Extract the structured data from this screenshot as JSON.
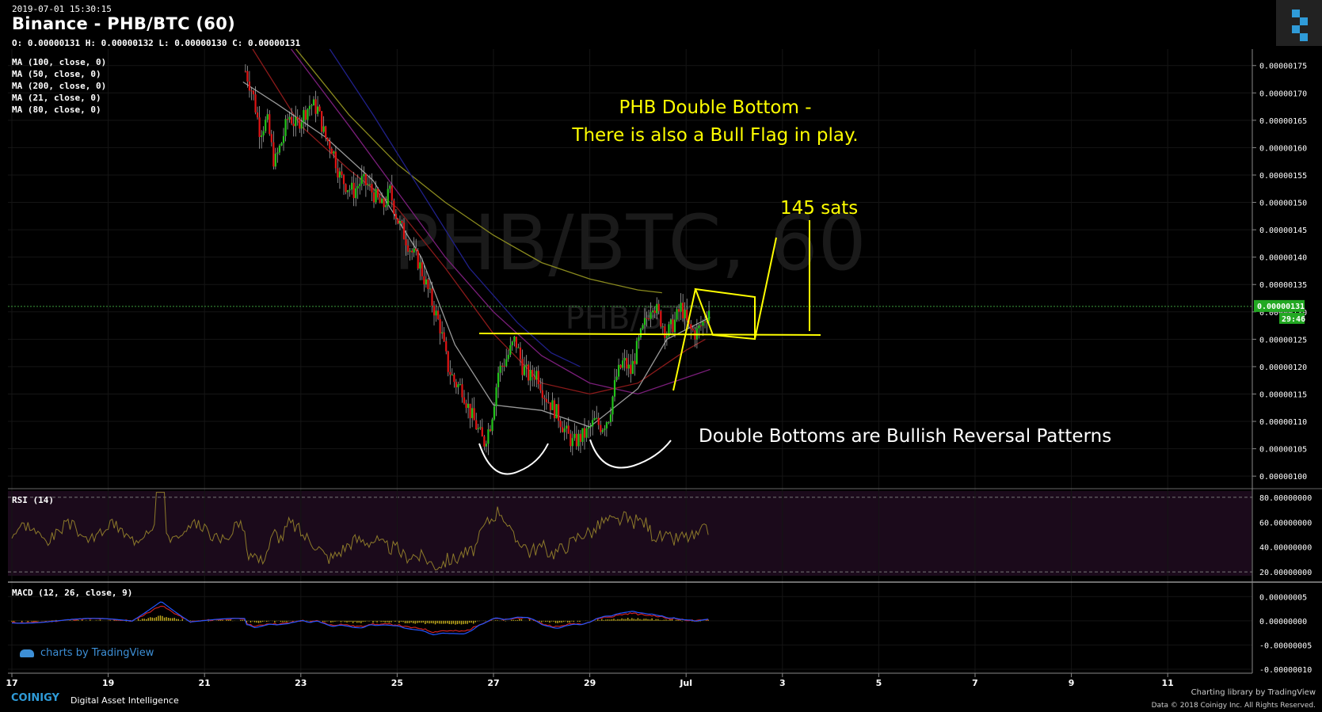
{
  "header": {
    "datetime": "2019-07-01 15:30:15",
    "title": "Binance - PHB/BTC (60)",
    "ohlc": "O: 0.00000131 H: 0.00000132 L: 0.00000130 C: 0.00000131",
    "watermark": "PHB/BTC, 60",
    "watermark_small": "PHB/BTC"
  },
  "indicators": {
    "ma_legend": [
      "MA (100, close, 0)",
      "MA (50, close, 0)",
      "MA (200, close, 0)",
      "MA (21, close, 0)",
      "MA (80, close, 0)"
    ],
    "rsi_label": "RSI (14)",
    "macd_label": "MACD (12, 26, close, 9)"
  },
  "annotations": {
    "title_line1": "PHB Double Bottom -",
    "title_line2": "There is also a Bull Flag in play.",
    "target": "145 sats",
    "note": "Double Bottoms are Bullish Reversal Patterns"
  },
  "price_badge": {
    "price": "0.00000131",
    "timer": "29:46"
  },
  "footer": {
    "tv_logo": "charts by TradingView",
    "brand": "COINIGY",
    "brand_tagline": "Digital Asset Intelligence",
    "credit_line1": "Charting library by  TradingView",
    "credit_line2": "Data © 2018  Coinigy Inc. All Rights Reserved."
  },
  "colors": {
    "background": "#000000",
    "up": "#22c41b",
    "down": "#e01414",
    "annotation": "#ffff00",
    "ma100": "#8a8a1e",
    "ma50": "#8b1a1a",
    "ma200": "#20208a",
    "ma21": "#999999",
    "ma80": "#7a1e7a",
    "rsi": "#8d7a2a",
    "macd": "#2255ff",
    "signal": "#cc2222"
  },
  "chart_data": {
    "type": "candlestick",
    "price_axis": {
      "ticks": [
        "0.00000175",
        "0.00000170",
        "0.00000165",
        "0.00000160",
        "0.00000155",
        "0.00000150",
        "0.00000145",
        "0.00000140",
        "0.00000135",
        "0.00000130",
        "0.00000125",
        "0.00000120",
        "0.00000115",
        "0.00000110",
        "0.00000105",
        "0.00000100"
      ],
      "range": [
        9.8e-07,
        1.78e-06
      ]
    },
    "rsi_axis": {
      "ticks": [
        "80.00000000",
        "60.00000000",
        "40.00000000",
        "20.00000000"
      ],
      "range": [
        15,
        85
      ],
      "bands": [
        20,
        80
      ]
    },
    "macd_axis": {
      "ticks": [
        "0.00000005",
        "0.00000000",
        "-0.00000005",
        "-0.00000010"
      ],
      "range": [
        -1.05e-07,
        7.5e-08
      ]
    },
    "time_axis": [
      "17",
      "19",
      "21",
      "23",
      "25",
      "27",
      "29",
      "Jul",
      "3",
      "5",
      "7",
      "9",
      "11"
    ],
    "current_price": 1.31e-06,
    "close_path": [
      [
        21.85,
        174
      ],
      [
        22.0,
        170
      ],
      [
        22.15,
        163
      ],
      [
        22.3,
        165
      ],
      [
        22.45,
        157
      ],
      [
        22.6,
        161
      ],
      [
        22.75,
        166
      ],
      [
        22.9,
        164
      ],
      [
        23.05,
        166
      ],
      [
        23.2,
        168
      ],
      [
        23.35,
        167
      ],
      [
        23.5,
        162
      ],
      [
        23.65,
        160
      ],
      [
        23.8,
        155
      ],
      [
        23.95,
        153
      ],
      [
        24.1,
        152
      ],
      [
        24.25,
        154
      ],
      [
        24.4,
        153
      ],
      [
        24.55,
        151
      ],
      [
        24.7,
        149
      ],
      [
        24.85,
        152
      ],
      [
        25.0,
        147
      ],
      [
        25.15,
        144
      ],
      [
        25.3,
        141
      ],
      [
        25.45,
        139
      ],
      [
        25.6,
        135
      ],
      [
        25.75,
        131
      ],
      [
        25.9,
        127
      ],
      [
        26.05,
        120
      ],
      [
        26.2,
        117
      ],
      [
        26.35,
        116
      ],
      [
        26.5,
        112
      ],
      [
        26.65,
        109
      ],
      [
        26.8,
        106
      ],
      [
        26.95,
        110
      ],
      [
        27.1,
        119
      ],
      [
        27.3,
        122
      ],
      [
        27.45,
        125
      ],
      [
        27.6,
        120
      ],
      [
        27.75,
        118
      ],
      [
        27.9,
        119
      ],
      [
        28.05,
        115
      ],
      [
        28.2,
        113
      ],
      [
        28.35,
        111
      ],
      [
        28.5,
        108
      ],
      [
        28.65,
        106
      ],
      [
        28.8,
        107
      ],
      [
        28.95,
        108
      ],
      [
        29.1,
        110
      ],
      [
        29.25,
        109
      ],
      [
        29.4,
        111
      ],
      [
        29.55,
        118
      ],
      [
        29.7,
        121
      ],
      [
        29.85,
        119
      ],
      [
        30.0,
        124
      ],
      [
        30.15,
        128
      ],
      [
        30.3,
        132
      ],
      [
        30.45,
        129
      ],
      [
        30.6,
        126
      ],
      [
        30.75,
        128
      ],
      [
        30.9,
        131
      ],
      [
        31.05,
        127
      ],
      [
        31.2,
        126
      ],
      [
        31.35,
        128
      ],
      [
        31.5,
        131
      ]
    ],
    "lows": {
      "first_bottom": 1.03e-06,
      "second_bottom": 1.05e-06
    },
    "neckline": 1.255e-06,
    "target_sats": 145,
    "moving_averages": [
      {
        "name": "MA (100, close, 0)",
        "points": [
          [
            22.9,
            178
          ],
          [
            24,
            166
          ],
          [
            25,
            157
          ],
          [
            26,
            150
          ],
          [
            27,
            144
          ],
          [
            28,
            139
          ],
          [
            29,
            136
          ],
          [
            30,
            134
          ],
          [
            30.5,
            133.5
          ]
        ]
      },
      {
        "name": "MA (200, close, 0)",
        "points": [
          [
            23.6,
            178
          ],
          [
            24.5,
            166
          ],
          [
            25.5,
            152
          ],
          [
            26.5,
            138
          ],
          [
            27.5,
            128
          ],
          [
            28.2,
            122.5
          ],
          [
            28.8,
            120
          ]
        ]
      },
      {
        "name": "MA (80, close, 0)",
        "points": [
          [
            22.8,
            178
          ],
          [
            24,
            164
          ],
          [
            25,
            152
          ],
          [
            26,
            140
          ],
          [
            27,
            130
          ],
          [
            28,
            122
          ],
          [
            29,
            117
          ],
          [
            30,
            115
          ],
          [
            31,
            118
          ],
          [
            31.5,
            119.5
          ]
        ]
      },
      {
        "name": "MA (50, close, 0)",
        "points": [
          [
            22,
            178
          ],
          [
            23,
            164
          ],
          [
            24,
            156
          ],
          [
            25,
            149
          ],
          [
            26,
            138
          ],
          [
            27,
            126
          ],
          [
            28,
            117
          ],
          [
            29,
            115
          ],
          [
            30,
            117
          ],
          [
            31,
            123
          ],
          [
            31.4,
            125
          ]
        ]
      },
      {
        "name": "MA (21, close, 0)",
        "points": [
          [
            21.8,
            172
          ],
          [
            22.5,
            168
          ],
          [
            23.5,
            162
          ],
          [
            24.5,
            154
          ],
          [
            25.5,
            140
          ],
          [
            26.2,
            124
          ],
          [
            27,
            113
          ],
          [
            28,
            112
          ],
          [
            29,
            109
          ],
          [
            30,
            116
          ],
          [
            30.6,
            125
          ],
          [
            31.5,
            129
          ]
        ]
      }
    ]
  }
}
